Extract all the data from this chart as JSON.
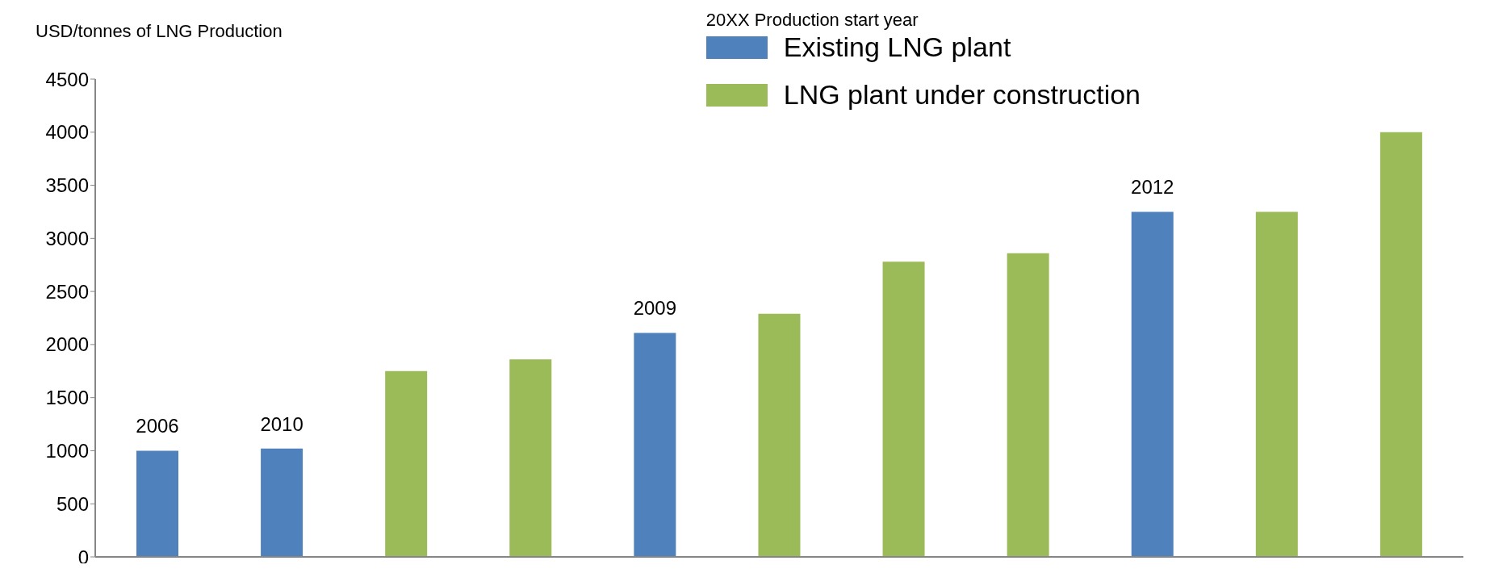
{
  "chart_data": {
    "type": "bar",
    "ylabel": "USD/tonnes of LNG Production",
    "legend_title": "20XX  Production start year",
    "categories": [
      null,
      null,
      null,
      null,
      null,
      null,
      null,
      null,
      null,
      null,
      null
    ],
    "series": [
      {
        "name": "Existing LNG plant",
        "color": "#4f81bd",
        "values": [
          1000,
          1020,
          null,
          null,
          2110,
          null,
          null,
          null,
          3250,
          null,
          null
        ]
      },
      {
        "name": "LNG plant under construction",
        "color": "#9bbb59",
        "values": [
          null,
          null,
          1750,
          1860,
          null,
          2290,
          2780,
          2860,
          null,
          3250,
          4000
        ]
      }
    ],
    "annotations": [
      {
        "text": "2006",
        "y": 1000
      },
      {
        "text": "2010",
        "y": 1020
      },
      {
        "text": "2009",
        "y": 2110
      },
      {
        "text": "2012",
        "y": 3250
      }
    ],
    "stacked": true,
    "ylim": [
      0,
      4500
    ],
    "yticks": [
      0,
      500,
      1000,
      1500,
      2000,
      2500,
      3000,
      3500,
      4000,
      4500
    ],
    "grid": false,
    "legend": "top right",
    "tick_labels": "y"
  }
}
